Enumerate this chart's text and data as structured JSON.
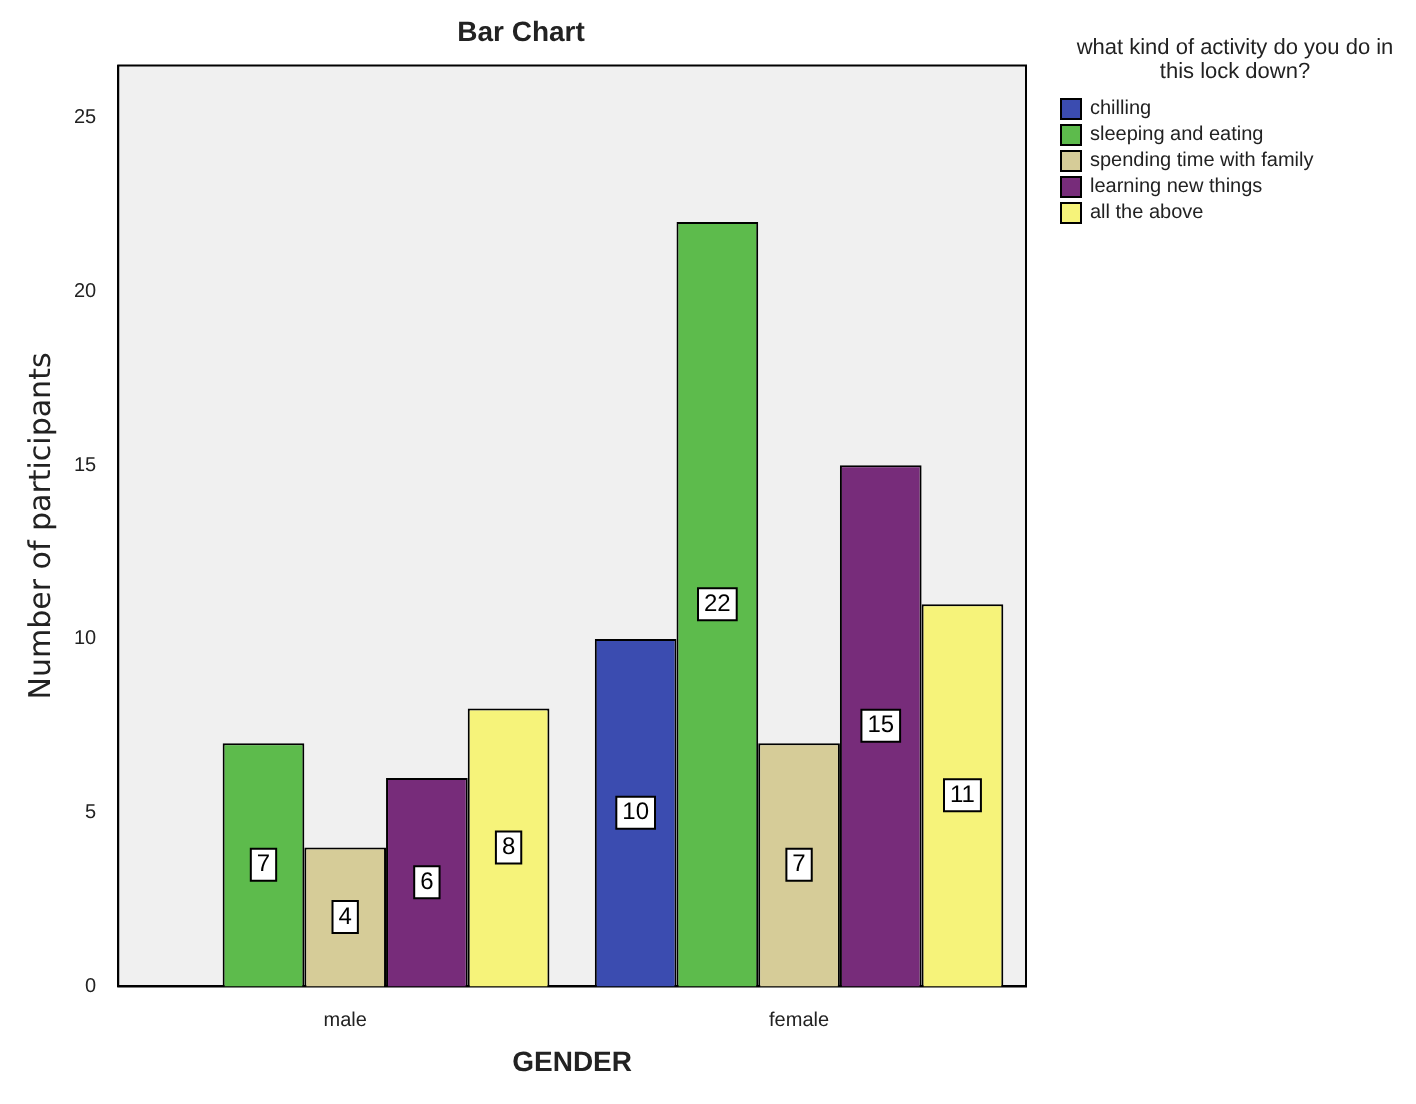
{
  "chart_data": {
    "type": "bar",
    "title": "Bar Chart",
    "xlabel": "GENDER",
    "ylabel": "Number of participants",
    "legend_title": "what kind of activity do you do in this lock down?",
    "categories": [
      "male",
      "female"
    ],
    "series": [
      {
        "name": "chilling",
        "color": "#3b4cb0",
        "values": [
          null,
          10
        ],
        "value_labels": [
          null,
          "10"
        ]
      },
      {
        "name": "sleeping and eating",
        "color": "#5dbb4c",
        "values": [
          7,
          22
        ],
        "value_labels": [
          "7",
          "22"
        ]
      },
      {
        "name": "spending time with family",
        "color": "#d6cc98",
        "values": [
          4,
          7
        ],
        "value_labels": [
          "4",
          "7"
        ]
      },
      {
        "name": "learning new things",
        "color": "#772c7a",
        "values": [
          6,
          15
        ],
        "value_labels": [
          "6",
          "15"
        ]
      },
      {
        "name": "all the above",
        "color": "#f6f37a",
        "values": [
          8,
          11
        ],
        "value_labels": [
          "8",
          "11"
        ]
      }
    ],
    "ylim": [
      0,
      26.5
    ],
    "yticks": [
      0,
      5,
      10,
      15,
      20,
      25
    ],
    "grid": false,
    "legend": "right"
  }
}
